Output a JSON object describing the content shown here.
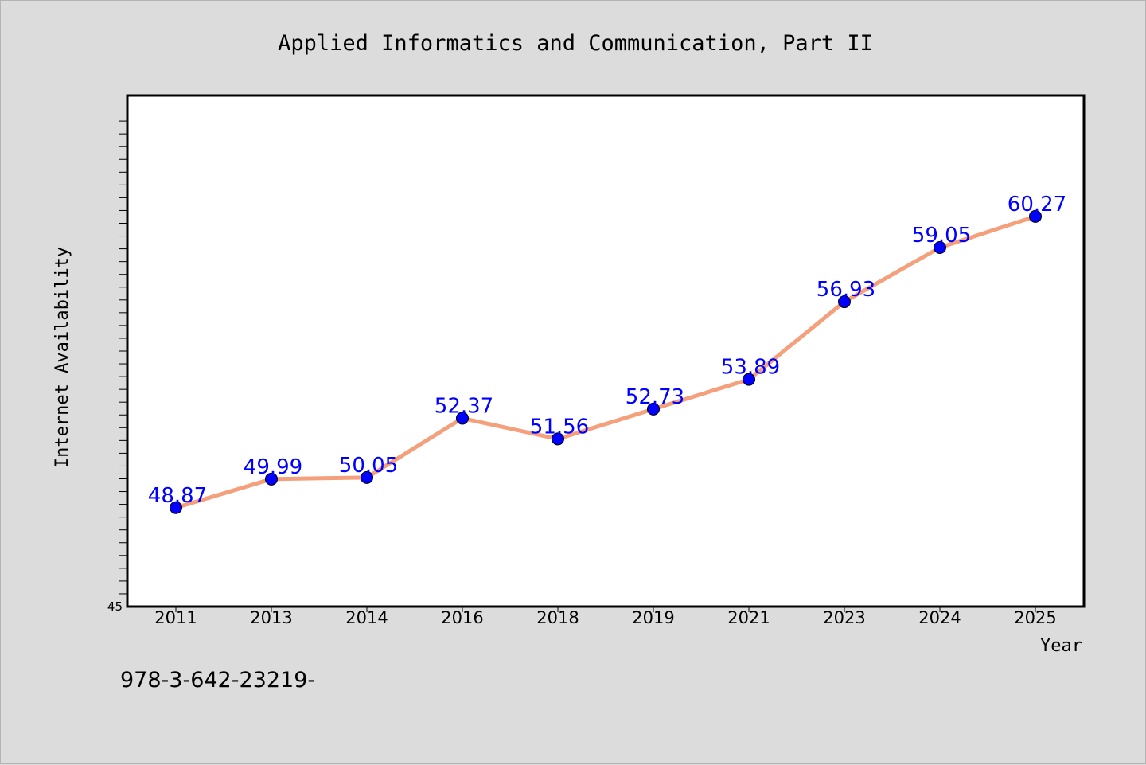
{
  "chart_data": {
    "type": "line",
    "title": "Applied Informatics and Communication, Part II",
    "xlabel": "Year",
    "ylabel": "Internet Availability",
    "categories": [
      "2011",
      "2013",
      "2014",
      "2016",
      "2018",
      "2019",
      "2021",
      "2023",
      "2024",
      "2025"
    ],
    "series": [
      {
        "values": [
          48.87,
          49.99,
          50.05,
          52.37,
          51.56,
          52.73,
          53.89,
          56.93,
          59.05,
          60.27
        ],
        "labels": [
          "48.87",
          "49.99",
          "50.05",
          "52.37",
          "51.56",
          "52.73",
          "53.89",
          "56.93",
          "59.05",
          "60.27"
        ],
        "line_color": "#f4a07c",
        "marker_color": "#0000ff",
        "label_color": "#0000ff"
      }
    ],
    "ylim": [
      45,
      65
    ],
    "ymin_label": "45",
    "grid": false,
    "legend": "none"
  },
  "footer": {
    "isbn": "978-3-642-23219-"
  }
}
